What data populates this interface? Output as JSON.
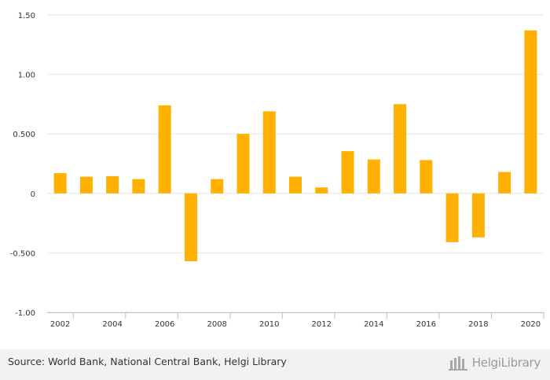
{
  "chart_data": {
    "type": "bar",
    "categories": [
      "2002",
      "2003",
      "2004",
      "2005",
      "2006",
      "2007",
      "2008",
      "2009",
      "2010",
      "2011",
      "2012",
      "2013",
      "2014",
      "2015",
      "2016",
      "2017",
      "2018",
      "2019",
      "2020"
    ],
    "values": [
      0.17,
      0.14,
      0.145,
      0.12,
      0.74,
      -0.57,
      0.12,
      0.5,
      0.69,
      0.14,
      0.05,
      0.355,
      0.285,
      0.75,
      0.28,
      -0.41,
      -0.37,
      0.18,
      1.37
    ],
    "x_tick_labels": [
      "2002",
      "2004",
      "2006",
      "2008",
      "2010",
      "2012",
      "2014",
      "2016",
      "2018",
      "2020"
    ],
    "y_ticks": [
      -1.0,
      -0.5,
      0,
      0.5,
      1.0,
      1.5
    ],
    "y_tick_labels": [
      "-1.00",
      "-0.500",
      "0",
      "0.500",
      "1.00",
      "1.50"
    ],
    "ylim": [
      -1.0,
      1.5
    ],
    "grid": true,
    "bar_color": "#ffb000",
    "title": "",
    "xlabel": "",
    "ylabel": ""
  },
  "footer": {
    "source": "Source: World Bank, National Central Bank, Helgi Library",
    "logo_text": "HelgiLibrary"
  }
}
